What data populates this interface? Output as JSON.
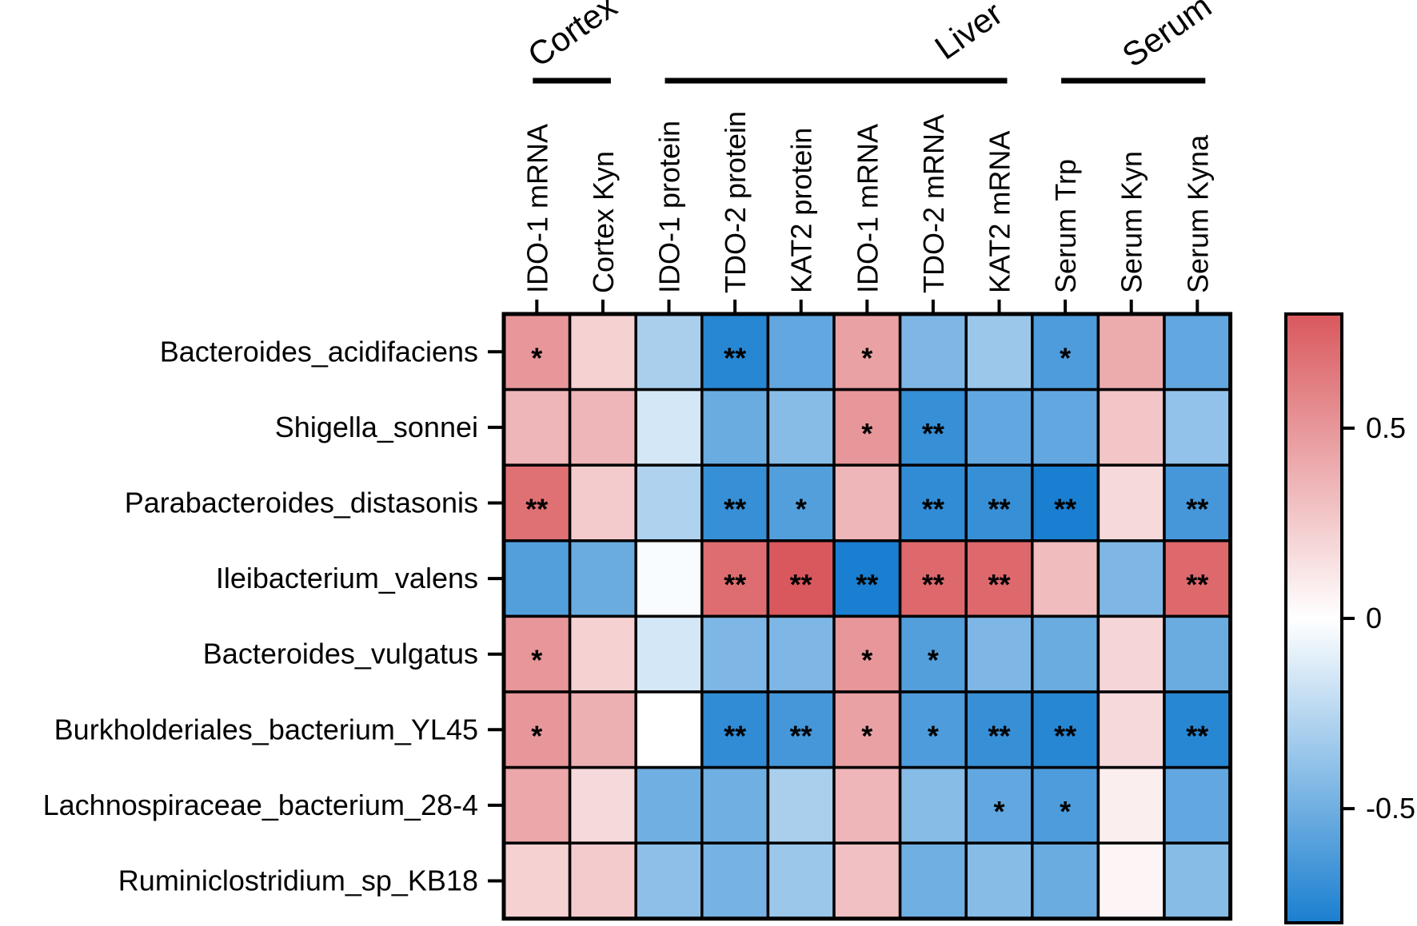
{
  "chart_data": {
    "type": "heatmap",
    "groups": [
      {
        "name": "Cortex",
        "start": 0,
        "end": 1
      },
      {
        "name": "Liver",
        "start": 2,
        "end": 7
      },
      {
        "name": "Serum",
        "start": 8,
        "end": 10
      }
    ],
    "columns": [
      "IDO-1 mRNA",
      "Cortex Kyn",
      "IDO-1 protein",
      "TDO-2 protein",
      "KAT2 protein",
      "IDO-1 mRNA",
      "TDO-2 mRNA",
      "KAT2 mRNA",
      "Serum Trp",
      "Serum Kyn",
      "Serum Kyna"
    ],
    "rows": [
      "Bacteroides_acidifaciens",
      "Shigella_sonnei",
      "Parabacteroides_distasonis",
      "Ileibacterium_valens",
      "Bacteroides_vulgatus",
      "Burkholderiales_bacterium_YL45",
      "Lachnospiraceae_bacterium_28-4",
      "Ruminiclostridium_sp_KB18"
    ],
    "values": [
      [
        0.5,
        0.22,
        -0.3,
        -0.75,
        -0.55,
        0.45,
        -0.45,
        -0.35,
        -0.62,
        0.4,
        -0.55
      ],
      [
        0.35,
        0.35,
        -0.15,
        -0.52,
        -0.42,
        0.5,
        -0.7,
        -0.55,
        -0.55,
        0.28,
        -0.38
      ],
      [
        0.68,
        0.25,
        -0.28,
        -0.7,
        -0.6,
        0.35,
        -0.72,
        -0.7,
        -0.8,
        0.18,
        -0.65
      ],
      [
        -0.6,
        -0.52,
        -0.02,
        0.7,
        0.8,
        -0.8,
        0.72,
        0.72,
        0.32,
        -0.45,
        0.72
      ],
      [
        0.5,
        0.22,
        -0.15,
        -0.45,
        -0.45,
        0.5,
        -0.6,
        -0.45,
        -0.52,
        0.2,
        -0.52
      ],
      [
        0.5,
        0.38,
        0.0,
        -0.72,
        -0.65,
        0.45,
        -0.62,
        -0.7,
        -0.75,
        0.18,
        -0.75
      ],
      [
        0.42,
        0.18,
        -0.5,
        -0.5,
        -0.3,
        0.35,
        -0.42,
        -0.55,
        -0.62,
        0.08,
        -0.55
      ],
      [
        0.22,
        0.25,
        -0.4,
        -0.48,
        -0.35,
        0.3,
        -0.5,
        -0.42,
        -0.52,
        0.05,
        -0.42
      ]
    ],
    "significance": [
      [
        "*",
        "",
        "",
        "**",
        "",
        "*",
        "",
        "",
        "*",
        "",
        ""
      ],
      [
        "",
        "",
        "",
        "",
        "",
        "*",
        "**",
        "",
        "",
        "",
        ""
      ],
      [
        "**",
        "",
        "",
        "**",
        "*",
        "",
        "**",
        "**",
        "**",
        "",
        "**"
      ],
      [
        "",
        "",
        "",
        "**",
        "**",
        "**",
        "**",
        "**",
        "",
        "",
        "**"
      ],
      [
        "*",
        "",
        "",
        "",
        "",
        "*",
        "*",
        "",
        "",
        "",
        ""
      ],
      [
        "*",
        "",
        "",
        "**",
        "**",
        "*",
        "*",
        "**",
        "**",
        "",
        "**"
      ],
      [
        "",
        "",
        "",
        "",
        "",
        "",
        "",
        "*",
        "*",
        "",
        ""
      ],
      [
        "",
        "",
        "",
        "",
        "",
        "",
        "",
        "",
        "",
        "",
        ""
      ]
    ],
    "colorbar": {
      "min": -0.8,
      "max": 0.8,
      "ticks": [
        -0.5,
        0,
        0.5
      ],
      "tick_labels": [
        "-0.5",
        "0",
        "0.5"
      ],
      "low_color": "#1a7fd0",
      "mid_color": "#ffffff",
      "high_color": "#d9585d"
    }
  }
}
